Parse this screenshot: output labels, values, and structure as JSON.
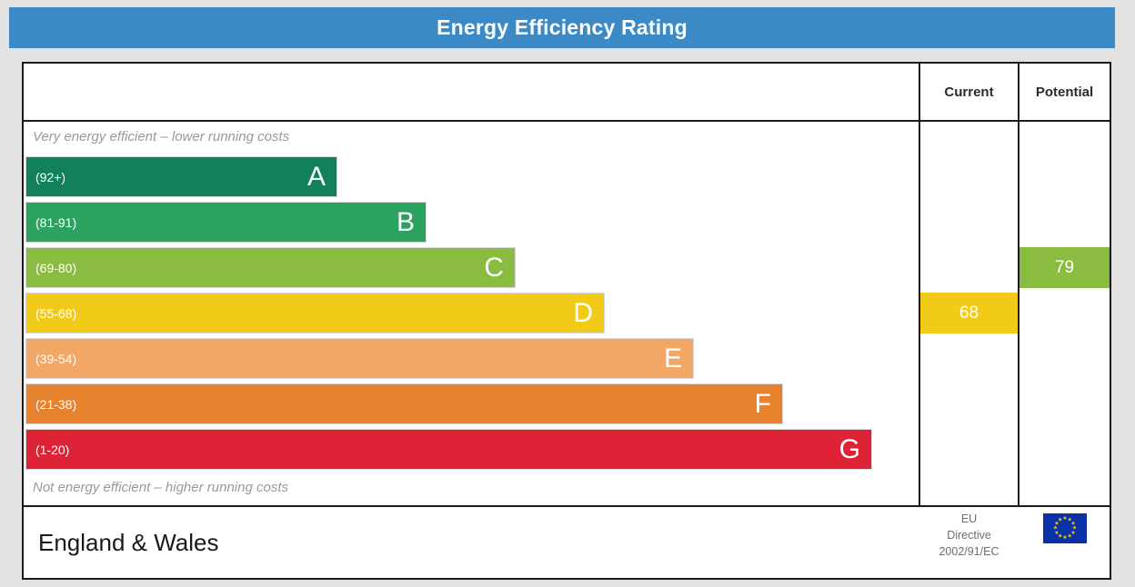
{
  "title": "Energy Efficiency Rating",
  "colors": {
    "title_bar": "#3b8ac5",
    "page_bg": "#e2e2e2",
    "border": "#1a1a1a",
    "note_text": "#999999"
  },
  "table": {
    "columns": {
      "current": "Current",
      "potential": "Potential"
    }
  },
  "scale": {
    "top_note": "Very energy efficient – lower running costs",
    "bottom_note": "Not energy efficient – higher running costs",
    "bands": [
      {
        "letter": "A",
        "range": "(92+)",
        "color": "#12805a",
        "width_pct": 35
      },
      {
        "letter": "B",
        "range": "(81-91)",
        "color": "#2ba35e",
        "width_pct": 45
      },
      {
        "letter": "C",
        "range": "(69-80)",
        "color": "#8bbc42",
        "width_pct": 55
      },
      {
        "letter": "D",
        "range": "(55-68)",
        "color": "#f2ca18",
        "width_pct": 65
      },
      {
        "letter": "E",
        "range": "(39-54)",
        "color": "#f2a766",
        "width_pct": 75
      },
      {
        "letter": "F",
        "range": "(21-38)",
        "color": "#e7822e",
        "width_pct": 85
      },
      {
        "letter": "G",
        "range": "(1-20)",
        "color": "#de2337",
        "width_pct": 95
      }
    ]
  },
  "ratings": {
    "current": {
      "value": "68",
      "band": "D",
      "color": "#f2ca18"
    },
    "potential": {
      "value": "79",
      "band": "C",
      "color": "#8bbc42"
    }
  },
  "footer": {
    "region": "England & Wales",
    "directive": [
      "EU",
      "Directive",
      "2002/91/EC"
    ],
    "eu_flag": {
      "bg": "#0a31a5",
      "star": "#ffcc00"
    }
  },
  "chart_data": {
    "type": "bar",
    "title": "Energy Efficiency Rating",
    "orientation": "horizontal",
    "categories": [
      "A (92+)",
      "B (81-91)",
      "C (69-80)",
      "D (55-68)",
      "E (39-54)",
      "F (21-38)",
      "G (1-20)"
    ],
    "bar_lengths_pct": [
      35,
      45,
      55,
      65,
      75,
      85,
      95
    ],
    "band_colors": [
      "#12805a",
      "#2ba35e",
      "#8bbc42",
      "#f2ca18",
      "#f2a766",
      "#e7822e",
      "#de2337"
    ],
    "annotations": [
      "Very energy efficient – lower running costs",
      "Not energy efficient – higher running costs"
    ],
    "series": [
      {
        "name": "Current",
        "value": 68,
        "band": "D"
      },
      {
        "name": "Potential",
        "value": 79,
        "band": "C"
      }
    ],
    "footer": "England & Wales — EU Directive 2002/91/EC",
    "legend_position": "none",
    "grid": false
  }
}
